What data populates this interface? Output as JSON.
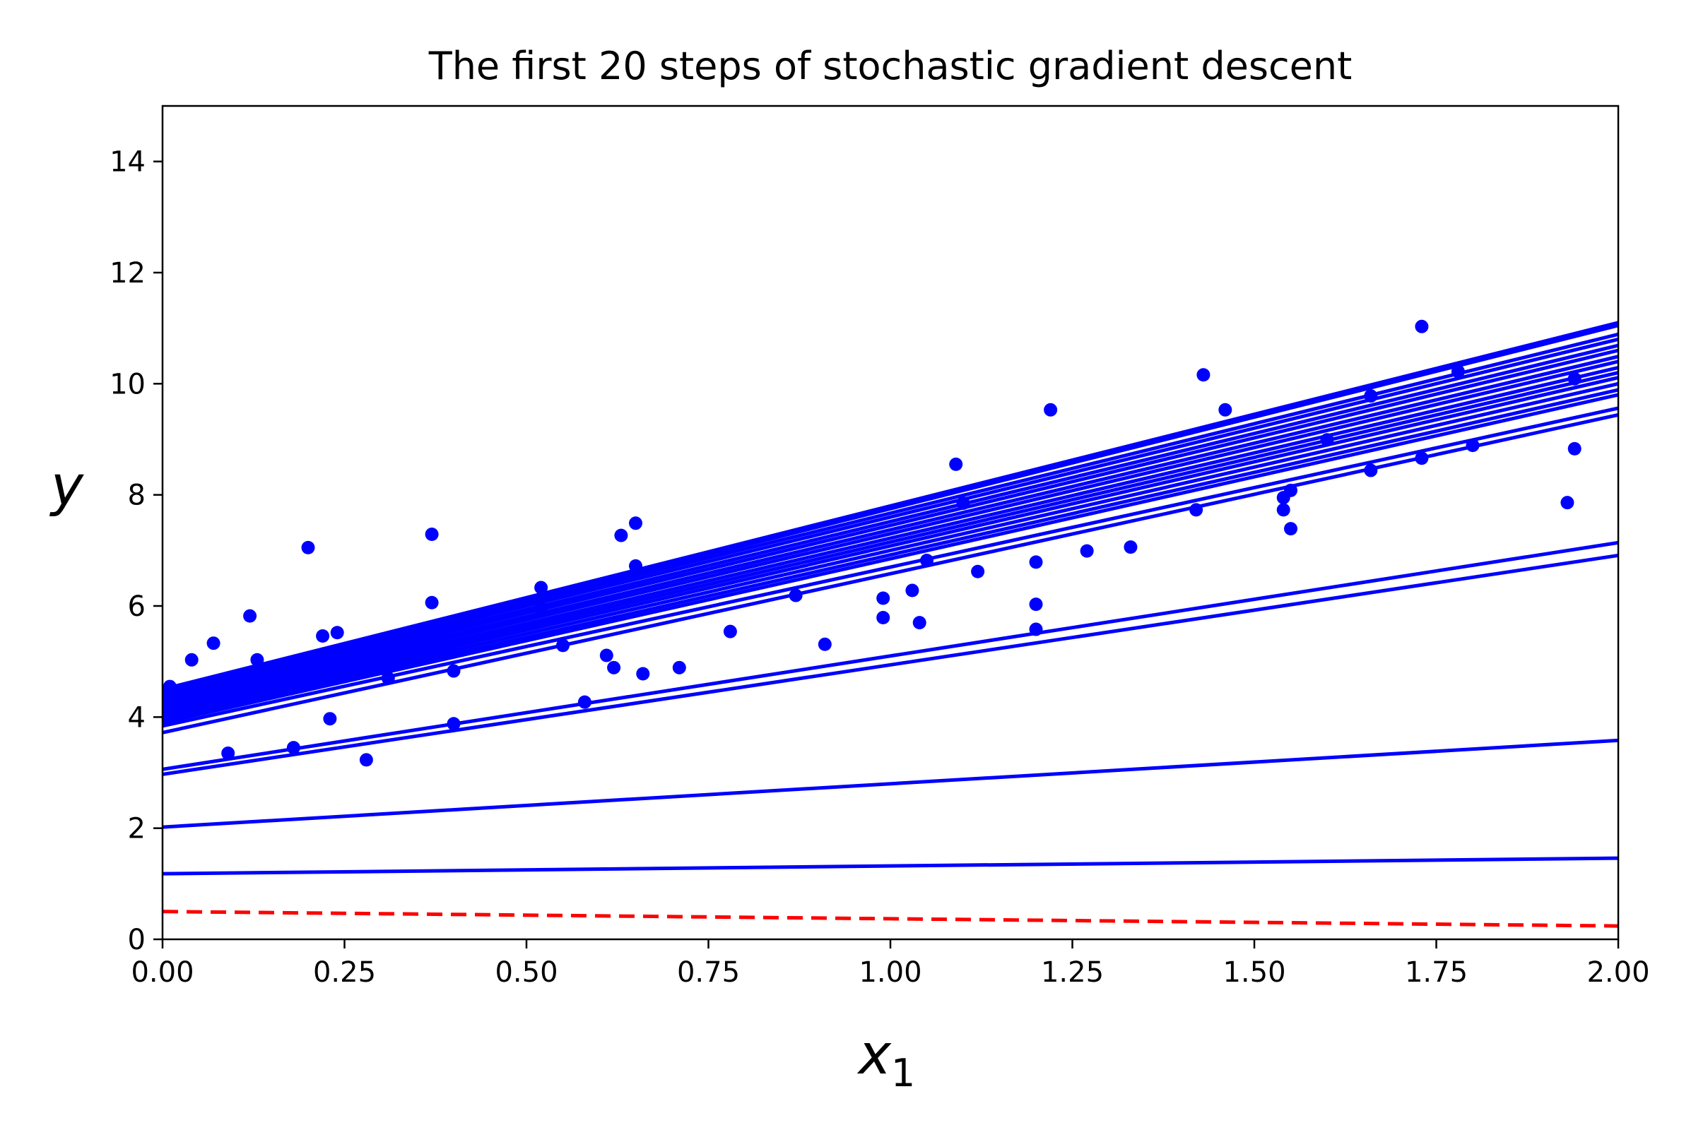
{
  "chart_data": {
    "type": "scatter",
    "title": "The first 20 steps of stochastic gradient descent",
    "xlabel": "x",
    "xlabel_subscript": "1",
    "ylabel": "y",
    "xlim": [
      0,
      2
    ],
    "ylim": [
      0,
      15
    ],
    "grid": false,
    "x_ticks": [
      "0.00",
      "0.25",
      "0.50",
      "0.75",
      "1.00",
      "1.25",
      "1.50",
      "1.75",
      "2.00"
    ],
    "y_ticks": [
      "0",
      "2",
      "4",
      "6",
      "8",
      "10",
      "12",
      "14"
    ],
    "colors": {
      "points": "#0000ff",
      "steps": "#0000ff",
      "initial": "#ff0000"
    },
    "points": [
      [
        0.01,
        4.55
      ],
      [
        0.04,
        5.03
      ],
      [
        0.07,
        5.33
      ],
      [
        0.09,
        3.35
      ],
      [
        0.12,
        5.82
      ],
      [
        0.13,
        5.03
      ],
      [
        0.18,
        3.45
      ],
      [
        0.2,
        7.05
      ],
      [
        0.22,
        5.46
      ],
      [
        0.23,
        3.97
      ],
      [
        0.24,
        5.52
      ],
      [
        0.28,
        3.23
      ],
      [
        0.31,
        4.7
      ],
      [
        0.37,
        6.06
      ],
      [
        0.37,
        7.29
      ],
      [
        0.4,
        3.88
      ],
      [
        0.4,
        4.83
      ],
      [
        0.52,
        6.33
      ],
      [
        0.52,
        5.95
      ],
      [
        0.55,
        5.29
      ],
      [
        0.58,
        4.27
      ],
      [
        0.61,
        5.11
      ],
      [
        0.62,
        4.89
      ],
      [
        0.63,
        7.27
      ],
      [
        0.65,
        7.49
      ],
      [
        0.65,
        6.72
      ],
      [
        0.66,
        4.78
      ],
      [
        0.71,
        4.89
      ],
      [
        0.78,
        5.54
      ],
      [
        0.87,
        6.19
      ],
      [
        0.91,
        5.31
      ],
      [
        0.99,
        6.14
      ],
      [
        0.99,
        5.79
      ],
      [
        1.03,
        6.28
      ],
      [
        1.04,
        5.7
      ],
      [
        1.05,
        6.82
      ],
      [
        1.09,
        8.55
      ],
      [
        1.1,
        7.85
      ],
      [
        1.12,
        6.62
      ],
      [
        1.2,
        6.03
      ],
      [
        1.2,
        5.58
      ],
      [
        1.2,
        6.79
      ],
      [
        1.22,
        9.53
      ],
      [
        1.27,
        6.99
      ],
      [
        1.33,
        7.06
      ],
      [
        1.42,
        7.73
      ],
      [
        1.43,
        10.16
      ],
      [
        1.46,
        9.53
      ],
      [
        1.54,
        7.95
      ],
      [
        1.54,
        7.73
      ],
      [
        1.55,
        7.39
      ],
      [
        1.55,
        8.08
      ],
      [
        1.6,
        8.99
      ],
      [
        1.66,
        9.78
      ],
      [
        1.66,
        8.44
      ],
      [
        1.73,
        11.03
      ],
      [
        1.73,
        8.66
      ],
      [
        1.78,
        10.22
      ],
      [
        1.8,
        8.89
      ],
      [
        1.93,
        7.86
      ],
      [
        1.94,
        8.83
      ],
      [
        1.94,
        10.09
      ]
    ],
    "series": [
      {
        "intercept": 0.5,
        "slope": -0.13,
        "style": "dashed"
      },
      {
        "intercept": 1.18,
        "slope": 0.14
      },
      {
        "intercept": 2.02,
        "slope": 0.78
      },
      {
        "intercept": 2.97,
        "slope": 1.97
      },
      {
        "intercept": 3.06,
        "slope": 2.04
      },
      {
        "intercept": 3.72,
        "slope": 2.86
      },
      {
        "intercept": 3.84,
        "slope": 2.86
      },
      {
        "intercept": 3.9,
        "slope": 2.95
      },
      {
        "intercept": 3.95,
        "slope": 2.97
      },
      {
        "intercept": 4.0,
        "slope": 3.0
      },
      {
        "intercept": 4.05,
        "slope": 3.03
      },
      {
        "intercept": 4.1,
        "slope": 3.05
      },
      {
        "intercept": 4.15,
        "slope": 3.07
      },
      {
        "intercept": 4.2,
        "slope": 3.1
      },
      {
        "intercept": 4.25,
        "slope": 3.12
      },
      {
        "intercept": 4.3,
        "slope": 3.15
      },
      {
        "intercept": 4.35,
        "slope": 3.17
      },
      {
        "intercept": 4.4,
        "slope": 3.2
      },
      {
        "intercept": 4.45,
        "slope": 3.22
      },
      {
        "intercept": 4.45,
        "slope": 3.3
      },
      {
        "intercept": 4.5,
        "slope": 3.3
      }
    ]
  }
}
